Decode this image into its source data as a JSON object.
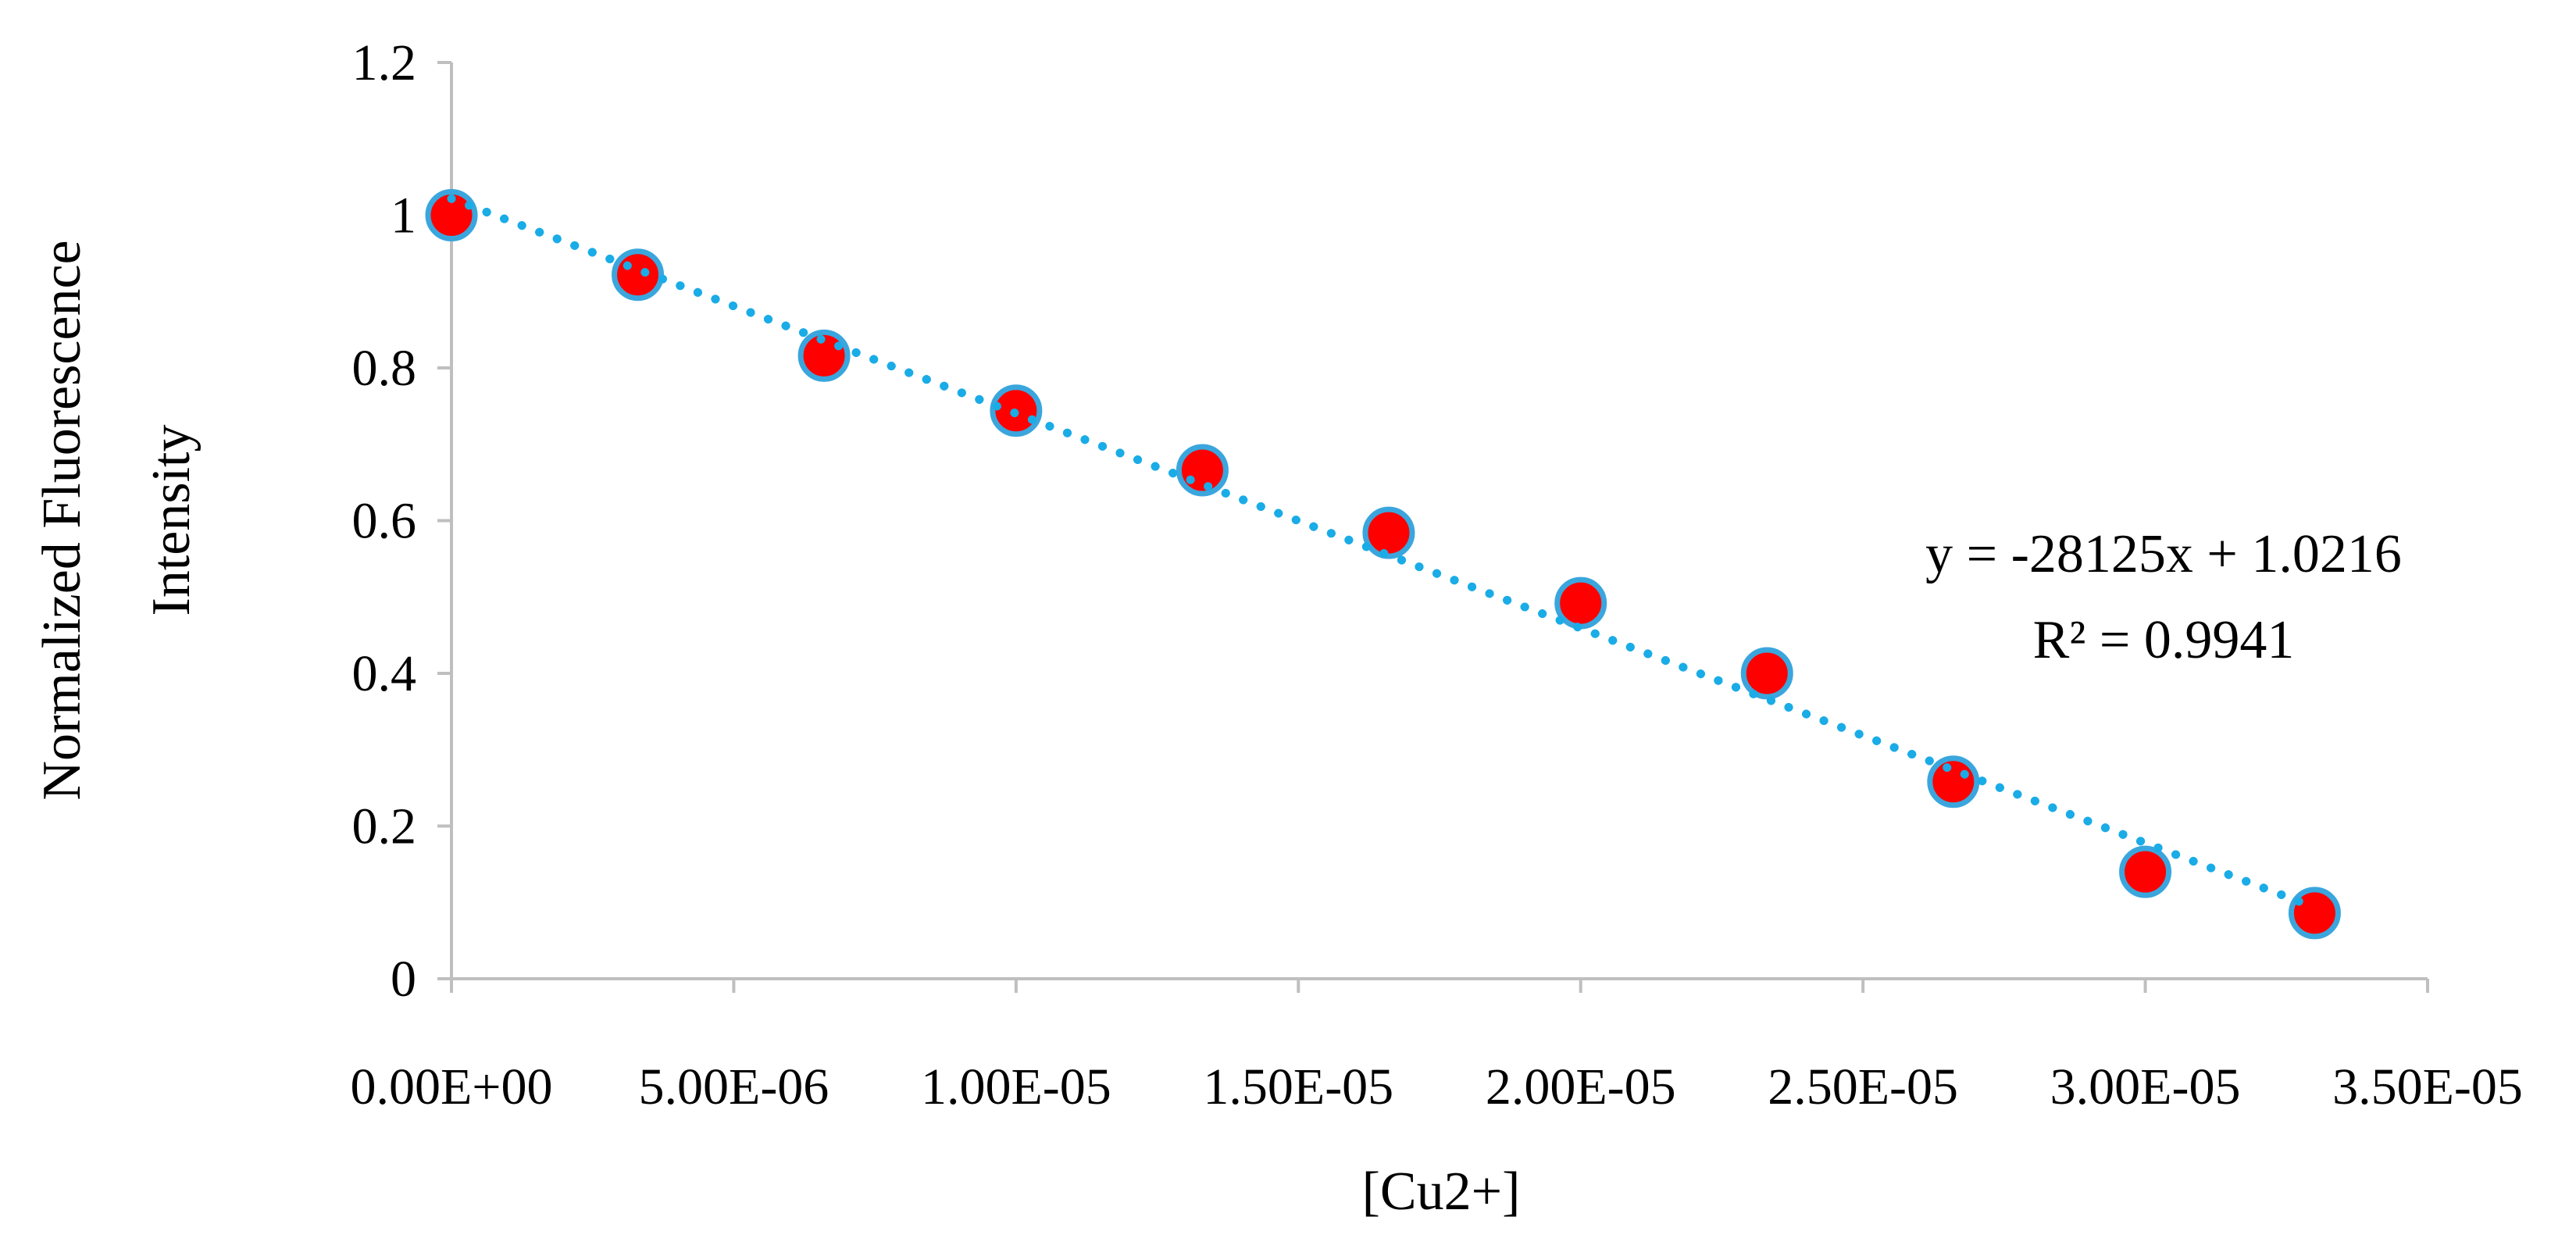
{
  "chart_data": {
    "type": "scatter",
    "title": "",
    "xlabel": "[Cu2+]",
    "ylabel_lines": [
      "Normalized Fluorescence",
      "Intensity"
    ],
    "xlim": [
      0,
      3.5e-05
    ],
    "ylim": [
      0,
      1.2
    ],
    "x_ticks": [
      0,
      5e-06,
      1e-05,
      1.5e-05,
      2e-05,
      2.5e-05,
      3e-05,
      3.5e-05
    ],
    "x_tick_labels": [
      "0.00E+00",
      "5.00E-06",
      "1.00E-05",
      "1.50E-05",
      "2.00E-05",
      "2.50E-05",
      "3.00E-05",
      "3.50E-05"
    ],
    "y_ticks": [
      0,
      0.2,
      0.4,
      0.6,
      0.8,
      1,
      1.2
    ],
    "y_tick_labels": [
      "0",
      "0.2",
      "0.4",
      "0.6",
      "0.8",
      "1",
      "1.2"
    ],
    "grid": false,
    "legend": "none",
    "series": [
      {
        "x": [
          0,
          3.3e-06,
          6.6e-06,
          1e-05,
          1.33e-05,
          1.66e-05,
          2e-05,
          2.33e-05,
          2.66e-05,
          3e-05,
          3.3e-05
        ],
        "y": [
          1.0,
          0.922,
          0.816,
          0.744,
          0.666,
          0.584,
          0.492,
          0.4,
          0.258,
          0.14,
          0.086
        ],
        "marker_fill": "#ff0000",
        "marker_edge": "#3aa6dd"
      }
    ],
    "trendline": {
      "type": "linear",
      "slope": -28125,
      "intercept": 1.0216,
      "color": "#1aace6",
      "style": "dotted",
      "equation_lines": [
        "y = -28125x + 1.0216",
        "R² = 0.9941"
      ]
    },
    "axis_color": "#bfbfbf"
  }
}
